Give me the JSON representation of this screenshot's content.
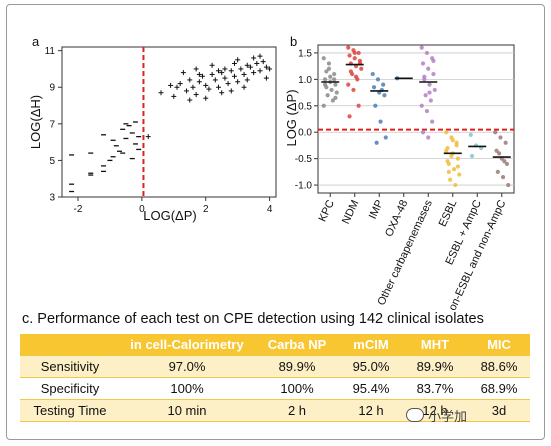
{
  "panel_a": {
    "label": "a",
    "chart_data": {
      "type": "scatter",
      "xlabel": "LOG(ΔP)",
      "ylabel": "LOG(ΔH)",
      "xlim": [
        -2.5,
        4.2
      ],
      "ylim": [
        3,
        11.2
      ],
      "xticks": [
        "-2",
        "0",
        "2",
        "4"
      ],
      "yticks": [
        "3",
        "5",
        "7",
        "9",
        "11"
      ],
      "threshold_x": 0.05,
      "threshold_color": "#e02020",
      "series": [
        {
          "marker": "dash",
          "points": [
            [
              -2.2,
              5.3
            ],
            [
              -2.2,
              3.7
            ],
            [
              -2.2,
              3.3
            ],
            [
              -1.6,
              5.4
            ],
            [
              -1.6,
              4.2
            ],
            [
              -1.6,
              4.3
            ],
            [
              -1.2,
              6.4
            ],
            [
              -1.2,
              4.4
            ],
            [
              -1.2,
              4.7
            ],
            [
              -1.0,
              5.0
            ],
            [
              -0.9,
              5.2
            ],
            [
              -0.8,
              5.8
            ],
            [
              -0.7,
              5.5
            ],
            [
              -0.6,
              6.7
            ],
            [
              -0.5,
              6.2
            ],
            [
              -0.4,
              6.9
            ],
            [
              -0.3,
              5.1
            ],
            [
              -0.2,
              5.9
            ],
            [
              -0.1,
              5.6
            ],
            [
              -0.3,
              6.5
            ],
            [
              -0.6,
              5.4
            ],
            [
              -0.9,
              6.1
            ],
            [
              -0.5,
              7.0
            ],
            [
              -0.2,
              7.1
            ],
            [
              -0.1,
              6.3
            ]
          ]
        },
        {
          "marker": "plus",
          "points": [
            [
              0.2,
              6.3
            ],
            [
              0.6,
              8.7
            ],
            [
              1.0,
              8.5
            ],
            [
              1.2,
              9.2
            ],
            [
              1.4,
              8.8
            ],
            [
              1.5,
              9.4
            ],
            [
              1.6,
              9.0
            ],
            [
              1.7,
              8.6
            ],
            [
              1.8,
              9.3
            ],
            [
              1.9,
              9.6
            ],
            [
              2.0,
              9.1
            ],
            [
              2.1,
              8.9
            ],
            [
              2.2,
              9.7
            ],
            [
              2.3,
              9.4
            ],
            [
              2.4,
              9.0
            ],
            [
              2.5,
              9.8
            ],
            [
              2.6,
              9.5
            ],
            [
              2.7,
              9.2
            ],
            [
              2.8,
              9.9
            ],
            [
              2.9,
              9.6
            ],
            [
              3.0,
              9.3
            ],
            [
              3.1,
              10.0
            ],
            [
              3.2,
              9.7
            ],
            [
              3.3,
              9.4
            ],
            [
              3.4,
              10.1
            ],
            [
              3.5,
              9.8
            ],
            [
              3.6,
              10.3
            ],
            [
              3.7,
              9.9
            ],
            [
              3.8,
              10.4
            ],
            [
              3.9,
              10.1
            ],
            [
              1.3,
              9.8
            ],
            [
              1.7,
              10.0
            ],
            [
              2.2,
              10.2
            ],
            [
              2.6,
              10.0
            ],
            [
              3.0,
              10.5
            ],
            [
              3.5,
              10.6
            ],
            [
              2.0,
              8.4
            ],
            [
              2.5,
              8.7
            ],
            [
              3.2,
              9.0
            ],
            [
              1.1,
              9.0
            ],
            [
              0.9,
              9.1
            ],
            [
              1.5,
              8.3
            ],
            [
              2.8,
              8.8
            ],
            [
              3.7,
              10.7
            ],
            [
              3.3,
              10.2
            ],
            [
              2.4,
              9.9
            ],
            [
              1.8,
              9.7
            ],
            [
              3.9,
              9.5
            ],
            [
              4.0,
              10.0
            ],
            [
              2.9,
              10.3
            ]
          ]
        }
      ]
    }
  },
  "panel_b": {
    "label": "b",
    "chart_data": {
      "type": "scatter",
      "ylabel": "LOG (ΔP)",
      "ylim": [
        -1.15,
        1.65
      ],
      "yticks": [
        "-1.0",
        "-0.5",
        "0.0",
        "0.5",
        "1.0",
        "1.5"
      ],
      "threshold_y": 0.05,
      "threshold_color": "#e02020",
      "categories": [
        "KPC",
        "NDM",
        "IMP",
        "OXA-48",
        "Other carbapenemases",
        "ESBL",
        "ESBL + AmpC",
        "non-ESBL and non-AmpC"
      ],
      "medians": [
        0.95,
        1.28,
        0.78,
        1.02,
        0.95,
        -0.4,
        -0.27,
        -0.47
      ],
      "colors": [
        "#8a8a8a",
        "#e0423b",
        "#4a7fb5",
        "#3a6b9a",
        "#b47ec4",
        "#efbe3a",
        "#7fc5d1",
        "#9b7a74"
      ],
      "values": [
        [
          1.4,
          1.3,
          1.1,
          1.0,
          0.95,
          0.9,
          0.85,
          0.8,
          0.75,
          0.7,
          0.6,
          0.5,
          1.2,
          1.0,
          0.9,
          1.05,
          0.65,
          1.15
        ],
        [
          1.6,
          1.55,
          1.5,
          1.45,
          1.4,
          1.35,
          1.3,
          1.25,
          1.2,
          1.1,
          1.0,
          0.9,
          0.8,
          0.5,
          0.3,
          1.5,
          1.3,
          1.15,
          1.05
        ],
        [
          1.1,
          1.0,
          0.9,
          0.85,
          0.75,
          0.7,
          0.5,
          0.2,
          -0.1,
          -0.2,
          0.8
        ],
        [
          1.02
        ],
        [
          1.6,
          1.5,
          1.4,
          1.3,
          1.2,
          1.1,
          1.0,
          0.9,
          0.8,
          0.7,
          0.6,
          0.5,
          0.4,
          0.2,
          0.0,
          -0.1,
          1.35,
          1.05,
          0.75
        ],
        [
          0.0,
          -0.1,
          -0.2,
          -0.3,
          -0.4,
          -0.5,
          -0.6,
          -0.7,
          -0.8,
          -0.9,
          -1.0,
          -0.35,
          -0.45,
          -0.25,
          -0.55,
          -0.15,
          -0.65,
          -0.75
        ],
        [
          -0.05,
          -0.25,
          -0.3,
          -0.45
        ],
        [
          0.0,
          -0.1,
          -0.2,
          -0.35,
          -0.5,
          -0.6,
          -0.75,
          -0.85,
          -1.0,
          -0.4,
          -0.55
        ]
      ]
    }
  },
  "performance_table": {
    "caption": "c. Performance of each test on CPE detection using 142 clinical isolates",
    "headers": [
      "",
      "in cell-Calorimetry",
      "Carba NP",
      "mCIM",
      "MHT",
      "MIC"
    ],
    "rows": [
      [
        "Sensitivity",
        "97.0%",
        "89.9%",
        "95.0%",
        "89.9%",
        "88.6%"
      ],
      [
        "Specificity",
        "100%",
        "100%",
        "95.4%",
        "83.7%",
        "68.9%"
      ],
      [
        "Testing Time",
        "10 min",
        "2 h",
        "12 h",
        "12 h",
        "3d"
      ]
    ],
    "header_color": "#f7c631",
    "stripe_color": "#fdf0c6"
  },
  "watermark": {
    "text": "小学加",
    "icon": "wechat-icon"
  }
}
